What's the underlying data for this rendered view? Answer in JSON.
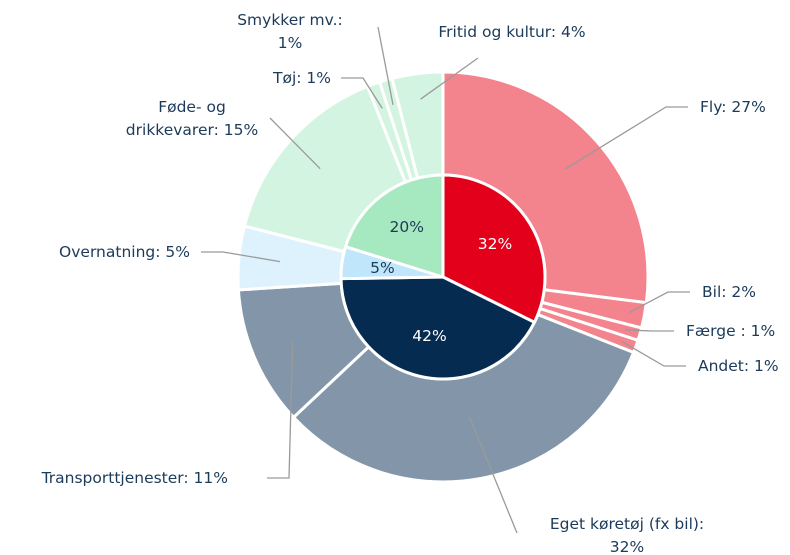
{
  "chart_data": {
    "type": "sunburst",
    "inner": {
      "values": [
        32,
        42,
        5,
        20
      ],
      "value_labels": [
        "32%",
        "42%",
        "5%",
        "20%"
      ],
      "colors": [
        "#e2001a",
        "#062b50",
        "#bfe6fb",
        "#a6e8bf"
      ],
      "label_colors": [
        "#ffffff",
        "#ffffff",
        "#1c3a5a",
        "#1c3a5a"
      ]
    },
    "outer": {
      "values": [
        27,
        2,
        1,
        1,
        32,
        11,
        5,
        15,
        1,
        1,
        4
      ],
      "labels": [
        [
          "Fly: 27%"
        ],
        [
          "Bil: 2%"
        ],
        [
          "Færge : 1%"
        ],
        [
          "Andet: 1%"
        ],
        [
          "Eget køretøj (fx bil):",
          "32%"
        ],
        [
          "Transporttjenester: 11%"
        ],
        [
          "Overnatning: 5%"
        ],
        [
          "Føde- og",
          "drikkevarer: 15%"
        ],
        [
          "Tøj: 1%"
        ],
        [
          "Smykker mv.:",
          "1%"
        ],
        [
          "Fritid og kultur: 4%"
        ]
      ],
      "colors": [
        "#f3838c",
        "#f3838c",
        "#f3838c",
        "#f3838c",
        "#8396a9",
        "#8396a9",
        "#def2fd",
        "#d3f4e0",
        "#d3f4e0",
        "#d3f4e0",
        "#d3f4e0"
      ]
    }
  }
}
